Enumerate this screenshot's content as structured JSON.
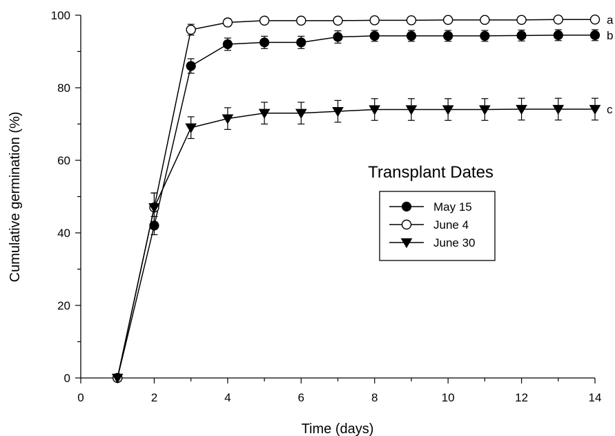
{
  "chart_data": {
    "type": "line",
    "title": "",
    "xlabel": "Time (days)",
    "ylabel": "Cumulative germination (%)",
    "xlim": [
      0,
      14
    ],
    "ylim": [
      0,
      100
    ],
    "xticks": [
      0,
      2,
      4,
      6,
      8,
      10,
      12,
      14
    ],
    "yticks": [
      0,
      20,
      40,
      60,
      80,
      100
    ],
    "grid": false,
    "legend": {
      "title": "Transplant Dates",
      "placement": "center-right"
    },
    "series": [
      {
        "name": "May 15",
        "marker": "filled-circle",
        "color": "#000000",
        "sig_letter": "b",
        "x": [
          1,
          2,
          3,
          4,
          5,
          6,
          7,
          8,
          9,
          10,
          11,
          12,
          13,
          14
        ],
        "y": [
          0,
          42,
          86,
          92,
          92.5,
          92.5,
          94,
          94.3,
          94.3,
          94.3,
          94.3,
          94.4,
          94.5,
          94.5
        ],
        "err": [
          0,
          2.5,
          2,
          1.7,
          1.7,
          1.7,
          1.7,
          1.5,
          1.5,
          1.5,
          1.5,
          1.5,
          1.5,
          1.5
        ]
      },
      {
        "name": "June 4",
        "marker": "open-circle",
        "color": "#000000",
        "sig_letter": "a",
        "x": [
          1,
          2,
          3,
          4,
          5,
          6,
          7,
          8,
          9,
          10,
          11,
          12,
          13,
          14
        ],
        "y": [
          0,
          47,
          96,
          98,
          98.5,
          98.5,
          98.5,
          98.6,
          98.6,
          98.7,
          98.7,
          98.7,
          98.8,
          98.8
        ],
        "err": [
          0,
          4,
          1.5,
          1,
          0.8,
          0.8,
          0.8,
          0.8,
          0.8,
          0.8,
          0.8,
          0.8,
          0.8,
          0.8
        ]
      },
      {
        "name": "June 30",
        "marker": "filled-triangle-down",
        "color": "#000000",
        "sig_letter": "c",
        "x": [
          1,
          2,
          3,
          4,
          5,
          6,
          7,
          8,
          9,
          10,
          11,
          12,
          13,
          14
        ],
        "y": [
          0,
          47,
          69,
          71.5,
          73,
          73,
          73.5,
          74,
          74,
          74,
          74,
          74.1,
          74.1,
          74.1
        ],
        "err": [
          0,
          4,
          3,
          3,
          3,
          3,
          3,
          3,
          3,
          3,
          3,
          3,
          3,
          3
        ]
      }
    ]
  }
}
